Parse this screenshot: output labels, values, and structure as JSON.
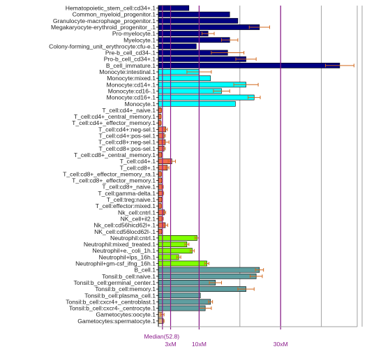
{
  "chart_data": {
    "type": "bar",
    "orientation": "horizontal",
    "x_unit": "x median",
    "xlim": [
      0,
      50
    ],
    "grid": true,
    "legend": "none",
    "median_label": "Median(52.8)",
    "median_value": 1,
    "reference_lines": [
      {
        "value": 3,
        "label": "3xM"
      },
      {
        "value": 10,
        "label": "10xM"
      },
      {
        "value": 30,
        "label": "30xM"
      }
    ],
    "colors": {
      "stem": "#000080",
      "monocyte": "#00ffff",
      "tcell": "#f26d4f",
      "nk": "#f26d4f",
      "neutrophil": "#80ff00",
      "bcell": "#5f9ea0",
      "gameto": "#deb887",
      "error": "#d2691e",
      "refline": "#8b1a8b",
      "grid": "#a0a0a0"
    },
    "categories": [
      {
        "label": "Hematopoietic_stem_cell:cd34+.1",
        "value": 7.5,
        "err": 0,
        "group": "stem"
      },
      {
        "label": "Common_myeloid_progenitor.1",
        "value": 17.5,
        "err": 0,
        "group": "stem"
      },
      {
        "label": "Granulocyte-macrophage_progenitor.1",
        "value": 19.5,
        "err": 0,
        "group": "stem"
      },
      {
        "label": "Megakaryocyte-erythroid_progenitor_.1",
        "value": 24.8,
        "err": 2.5,
        "group": "stem"
      },
      {
        "label": "Pro-myelocyte.1",
        "value": 12.2,
        "err": 1.5,
        "group": "stem"
      },
      {
        "label": "Myelocyte.1",
        "value": 17.5,
        "err": 2,
        "group": "stem"
      },
      {
        "label": "Colony-forming_unit_erythrocyte:cfu-e.1",
        "value": 9.3,
        "err": 0,
        "group": "stem"
      },
      {
        "label": "Pre-b_cell_cd34-.1",
        "value": 17.0,
        "err": 4,
        "group": "stem"
      },
      {
        "label": "Pro-b_cell_cd34+.1",
        "value": 21.5,
        "err": 2.5,
        "group": "stem"
      },
      {
        "label": "B_cell_immature.1",
        "value": 44.5,
        "err": 3.5,
        "group": "stem"
      },
      {
        "label": "Monocyte:intestinal.1",
        "value": 10.0,
        "err": 3,
        "group": "monocyte"
      },
      {
        "label": "Monocyte:mixed.1",
        "value": 12.8,
        "err": 0,
        "group": "monocyte"
      },
      {
        "label": "Monocyte:cd14+.1",
        "value": 21.5,
        "err": 3,
        "group": "monocyte"
      },
      {
        "label": "Monocyte:cd16-.1",
        "value": 15.5,
        "err": 2,
        "group": "monocyte"
      },
      {
        "label": "Monocyte:cd16+.1",
        "value": 23.5,
        "err": 1.5,
        "group": "monocyte"
      },
      {
        "label": "Monocyte.1",
        "value": 18.9,
        "err": 0,
        "group": "monocyte"
      },
      {
        "label": "T_cell:cd4+_naive.1",
        "value": 0.7,
        "err": 0.1,
        "group": "tcell"
      },
      {
        "label": "T_cell:cd4+_central_memory.1",
        "value": 0.6,
        "err": 0.1,
        "group": "tcell"
      },
      {
        "label": "T_cell:cd4+_effector_memory.1",
        "value": 0.6,
        "err": 0.1,
        "group": "tcell"
      },
      {
        "label": "T_cell:cd4+:neg-sel.1",
        "value": 1.8,
        "err": 0.4,
        "group": "tcell"
      },
      {
        "label": "T_cell:cd4+:pos-sel.1",
        "value": 1.4,
        "err": 0.3,
        "group": "tcell"
      },
      {
        "label": "T_cell:cd8+:neg-sel.1",
        "value": 1.7,
        "err": 0.9,
        "group": "tcell"
      },
      {
        "label": "T_cell:cd8+:pos-sel.1",
        "value": 1.4,
        "err": 0.3,
        "group": "tcell"
      },
      {
        "label": "T_cell:cd8+_central_memory.1",
        "value": 0.8,
        "err": 0.1,
        "group": "tcell"
      },
      {
        "label": "T_cell:cd4+.1",
        "value": 3.3,
        "err": 0.9,
        "group": "tcell"
      },
      {
        "label": "T_cell:cd8+.1",
        "value": 2.2,
        "err": 0.4,
        "group": "tcell"
      },
      {
        "label": "T_cell:cd8+_effector_memory_ra.1",
        "value": 0.7,
        "err": 0.1,
        "group": "tcell"
      },
      {
        "label": "T_cell:cd8+_effector_memory.1",
        "value": 0.8,
        "err": 0.1,
        "group": "tcell"
      },
      {
        "label": "T_cell:cd8+_naive.1",
        "value": 1.0,
        "err": 0.2,
        "group": "tcell"
      },
      {
        "label": "T_cell:gamma-delta.1",
        "value": 1.1,
        "err": 0.2,
        "group": "tcell"
      },
      {
        "label": "T_cell:treg:naive.1",
        "value": 0.8,
        "err": 0.1,
        "group": "tcell"
      },
      {
        "label": "T_cell:effector:mixed.1",
        "value": 0.7,
        "err": 0.1,
        "group": "tcell"
      },
      {
        "label": "Nk_cell:cntrl.1",
        "value": 1.5,
        "err": 0.3,
        "group": "nk"
      },
      {
        "label": "NK_cell+il2.1",
        "value": 1.0,
        "err": 0.2,
        "group": "nk"
      },
      {
        "label": "Nk_cell:cd56hicd62l+.1",
        "value": 1.7,
        "err": 0.6,
        "group": "nk"
      },
      {
        "label": "NK_cell:cd56locd62l-.1",
        "value": 0.8,
        "err": 0.1,
        "group": "nk"
      },
      {
        "label": "Neutrophil:cntrl.1",
        "value": 9.5,
        "err": 0.5,
        "group": "neutrophil"
      },
      {
        "label": "Neutrophil:mixed_treated.1",
        "value": 7.0,
        "err": 0.5,
        "group": "neutrophil"
      },
      {
        "label": "Neutrophil+e._coli_1h.1",
        "value": 8.3,
        "err": 0.5,
        "group": "neutrophil"
      },
      {
        "label": "Neutrophil+lps_16h.1",
        "value": 5.0,
        "err": 0.5,
        "group": "neutrophil"
      },
      {
        "label": "Neutrophil+gm-csf_ifng_16h.1",
        "value": 11.9,
        "err": 0.5,
        "group": "neutrophil"
      },
      {
        "label": "B_cell.1",
        "value": 24.8,
        "err": 1.0,
        "group": "bcell"
      },
      {
        "label": "Tonsil:b_cell:naive.1",
        "value": 24.0,
        "err": 1.5,
        "group": "bcell"
      },
      {
        "label": "Tonsil:b_cell:germinal_center.1",
        "value": 14.0,
        "err": 1.5,
        "group": "bcell"
      },
      {
        "label": "Tonsil:b_cell:memory.1",
        "value": 21.5,
        "err": 2.0,
        "group": "bcell"
      },
      {
        "label": "Tonsil:b_cell:plasma_cell.1",
        "value": 10.3,
        "err": 0,
        "group": "bcell"
      },
      {
        "label": "Tonsil:b_cell:cxcr4+_centroblast.1",
        "value": 12.8,
        "err": 0.5,
        "group": "bcell"
      },
      {
        "label": "Tonsil:b_cell:cxcr4-_centrocyte.1",
        "value": 11.5,
        "err": 1.5,
        "group": "bcell"
      },
      {
        "label": "Gametocytes:oocyte.1",
        "value": 1.0,
        "err": 0.4,
        "group": "gameto"
      },
      {
        "label": "Gametocytes:spermatocyte.1",
        "value": 1.2,
        "err": 0.2,
        "group": "gameto"
      }
    ]
  }
}
